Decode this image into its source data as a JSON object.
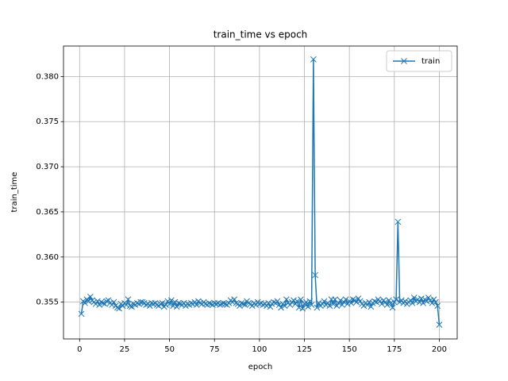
{
  "chart_data": {
    "type": "line",
    "title": "train_time vs epoch",
    "xlabel": "epoch",
    "ylabel": "train_time",
    "x": [
      1,
      2,
      3,
      4,
      5,
      6,
      7,
      8,
      9,
      10,
      11,
      12,
      13,
      14,
      15,
      16,
      17,
      18,
      19,
      20,
      21,
      22,
      23,
      24,
      25,
      26,
      27,
      28,
      29,
      30,
      31,
      32,
      33,
      34,
      35,
      36,
      37,
      38,
      39,
      40,
      41,
      42,
      43,
      44,
      45,
      46,
      47,
      48,
      49,
      50,
      51,
      52,
      53,
      54,
      55,
      56,
      57,
      58,
      59,
      60,
      61,
      62,
      63,
      64,
      65,
      66,
      67,
      68,
      69,
      70,
      71,
      72,
      73,
      74,
      75,
      76,
      77,
      78,
      79,
      80,
      81,
      82,
      83,
      84,
      85,
      86,
      87,
      88,
      89,
      90,
      91,
      92,
      93,
      94,
      95,
      96,
      97,
      98,
      99,
      100,
      101,
      102,
      103,
      104,
      105,
      106,
      107,
      108,
      109,
      110,
      111,
      112,
      113,
      114,
      115,
      116,
      117,
      118,
      119,
      120,
      121,
      122,
      123,
      124,
      125,
      126,
      127,
      128,
      129,
      130,
      131,
      132,
      133,
      134,
      135,
      136,
      137,
      138,
      139,
      140,
      141,
      142,
      143,
      144,
      145,
      146,
      147,
      148,
      149,
      150,
      151,
      152,
      153,
      154,
      155,
      156,
      157,
      158,
      159,
      160,
      161,
      162,
      163,
      164,
      165,
      166,
      167,
      168,
      169,
      170,
      171,
      172,
      173,
      174,
      175,
      176,
      177,
      178,
      179,
      180,
      181,
      182,
      183,
      184,
      185,
      186,
      187,
      188,
      189,
      190,
      191,
      192,
      193,
      194,
      195,
      196,
      197,
      198,
      199,
      200
    ],
    "series": [
      {
        "name": "train",
        "color": "#1f77b4",
        "marker": "x",
        "values": [
          0.3537,
          0.3551,
          0.3549,
          0.3553,
          0.3551,
          0.3556,
          0.3552,
          0.355,
          0.3548,
          0.3551,
          0.3547,
          0.355,
          0.3549,
          0.3548,
          0.3551,
          0.3552,
          0.3549,
          0.3547,
          0.355,
          0.3546,
          0.3544,
          0.3543,
          0.3548,
          0.3546,
          0.3549,
          0.3547,
          0.3553,
          0.3546,
          0.3545,
          0.3548,
          0.3547,
          0.3549,
          0.3548,
          0.355,
          0.355,
          0.3549,
          0.3547,
          0.3548,
          0.3546,
          0.3549,
          0.3548,
          0.3549,
          0.3547,
          0.3546,
          0.3548,
          0.3549,
          0.3545,
          0.3547,
          0.3551,
          0.3548,
          0.3552,
          0.3546,
          0.355,
          0.3545,
          0.3549,
          0.3548,
          0.3547,
          0.3549,
          0.3546,
          0.3548,
          0.3547,
          0.3549,
          0.3548,
          0.355,
          0.3547,
          0.3551,
          0.3549,
          0.3548,
          0.355,
          0.3548,
          0.3547,
          0.3549,
          0.3548,
          0.3547,
          0.3549,
          0.3548,
          0.3549,
          0.3547,
          0.3548,
          0.3549,
          0.3548,
          0.3547,
          0.3549,
          0.3552,
          0.355,
          0.3553,
          0.3549,
          0.3548,
          0.3546,
          0.3549,
          0.3548,
          0.3547,
          0.3551,
          0.3549,
          0.3548,
          0.3546,
          0.3549,
          0.3547,
          0.355,
          0.3548,
          0.3549,
          0.3547,
          0.3548,
          0.3546,
          0.3549,
          0.3545,
          0.3548,
          0.355,
          0.3549,
          0.3551,
          0.3547,
          0.3544,
          0.3548,
          0.3546,
          0.3553,
          0.3549,
          0.3547,
          0.355,
          0.3552,
          0.3548,
          0.3551,
          0.3544,
          0.3553,
          0.3543,
          0.3548,
          0.355,
          0.3545,
          0.3551,
          0.3547,
          0.3819,
          0.358,
          0.3544,
          0.3549,
          0.3546,
          0.3548,
          0.3551,
          0.3547,
          0.3549,
          0.3546,
          0.3553,
          0.3548,
          0.3553,
          0.3546,
          0.3549,
          0.3552,
          0.3547,
          0.355,
          0.3553,
          0.3548,
          0.3551,
          0.3549,
          0.3553,
          0.3552,
          0.355,
          0.3554,
          0.3551,
          0.3548,
          0.3546,
          0.3549,
          0.3547,
          0.355,
          0.3545,
          0.3549,
          0.3551,
          0.355,
          0.3553,
          0.3551,
          0.3548,
          0.3552,
          0.355,
          0.3547,
          0.3552,
          0.3549,
          0.3544,
          0.355,
          0.3553,
          0.3639,
          0.355,
          0.3552,
          0.3549,
          0.3551,
          0.3548,
          0.355,
          0.3552,
          0.3549,
          0.3555,
          0.3551,
          0.3553,
          0.355,
          0.3554,
          0.3549,
          0.3553,
          0.3551,
          0.3555,
          0.3552,
          0.3549,
          0.3553,
          0.355,
          0.3546,
          0.3525
        ]
      }
    ],
    "xlim": [
      -8.95,
      209.95
    ],
    "xticks": [
      0,
      25,
      50,
      75,
      100,
      125,
      150,
      175,
      200
    ],
    "ylim": [
      0.350925,
      0.383375
    ],
    "yticks": [
      0.355,
      {
        "value": 0.36,
        "label": "0.360"
      },
      0.365,
      {
        "value": 0.37,
        "label": "0.370"
      },
      0.375,
      {
        "value": 0.38,
        "label": "0.380"
      }
    ],
    "grid": true,
    "legend": "upper right"
  }
}
